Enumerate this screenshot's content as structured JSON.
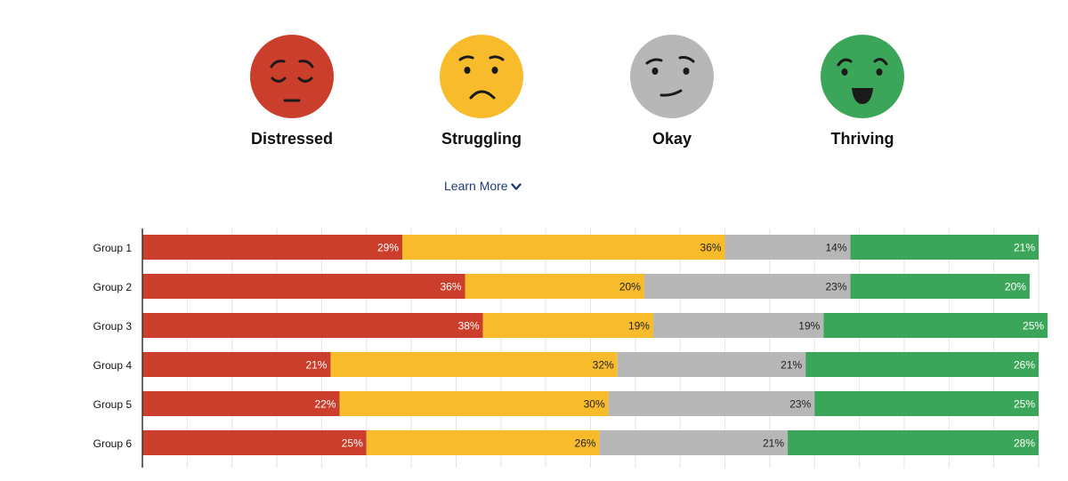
{
  "legend": {
    "items": [
      {
        "label": "Distressed",
        "color": "#cc3e2c",
        "icon": "distressed-face-icon"
      },
      {
        "label": "Struggling",
        "color": "#f8bb2c",
        "icon": "struggling-face-icon"
      },
      {
        "label": "Okay",
        "color": "#b7b7b7",
        "icon": "okay-face-icon"
      },
      {
        "label": "Thriving",
        "color": "#3ba65a",
        "icon": "thriving-face-icon"
      }
    ]
  },
  "learn_more": {
    "label": "Learn More",
    "icon": "chevron-down-icon"
  },
  "chart_data": {
    "type": "bar",
    "orientation": "horizontal",
    "stacked": true,
    "categories": [
      "Group 1",
      "Group 2",
      "Group 3",
      "Group 4",
      "Group 5",
      "Group 6"
    ],
    "series": [
      {
        "name": "Distressed",
        "color": "#cc3e2c",
        "values": [
          29,
          36,
          38,
          21,
          22,
          25
        ],
        "labels": [
          "29%",
          "36%",
          "38%",
          "21%",
          "22%",
          "25%"
        ]
      },
      {
        "name": "Struggling",
        "color": "#f8bb2c",
        "values": [
          36,
          20,
          19,
          32,
          30,
          26
        ],
        "labels": [
          "36%",
          "20%",
          "19%",
          "32%",
          "30%",
          "26%"
        ]
      },
      {
        "name": "Okay",
        "color": "#b7b7b7",
        "values": [
          14,
          23,
          19,
          21,
          23,
          21
        ],
        "labels": [
          "14%",
          "23%",
          "19%",
          "21%",
          "23%",
          "21%"
        ]
      },
      {
        "name": "Thriving",
        "color": "#3ba65a",
        "values": [
          21,
          20,
          25,
          26,
          25,
          28
        ],
        "labels": [
          "21%",
          "20%",
          "25%",
          "26%",
          "25%",
          "28%"
        ]
      }
    ],
    "xlim": [
      0,
      100
    ],
    "grid": true,
    "legend_position": "top"
  }
}
